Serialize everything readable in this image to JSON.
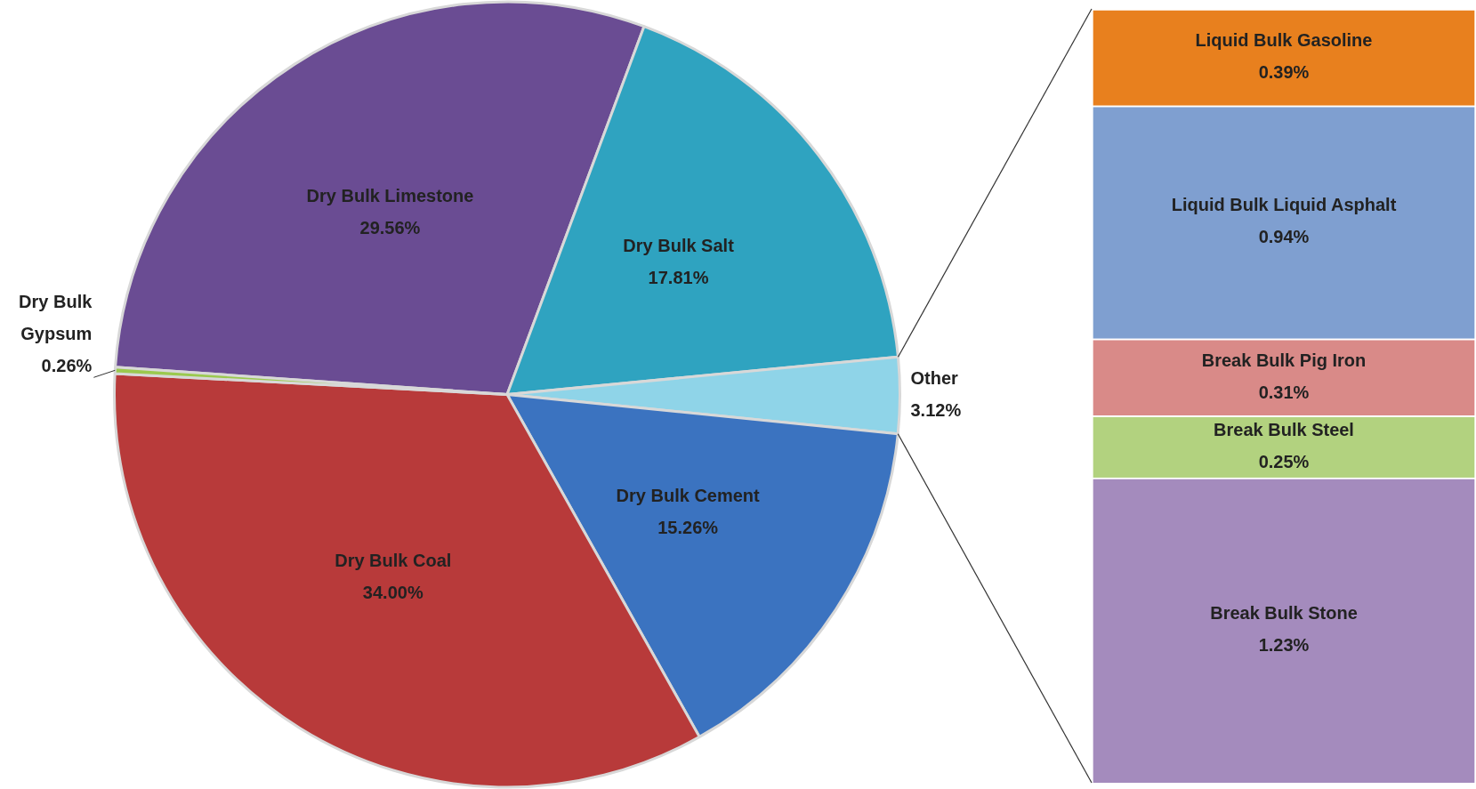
{
  "chart_data": [
    {
      "type": "pie",
      "categories": [
        "Dry Bulk Limestone",
        "Dry Bulk Salt",
        "Other",
        "Dry Bulk Cement",
        "Dry Bulk Coal",
        "Dry Bulk Gypsum"
      ],
      "values": [
        29.56,
        17.81,
        3.12,
        15.26,
        34.0,
        0.26
      ],
      "value_labels": [
        "29.56%",
        "17.81%",
        "3.12%",
        "15.26%",
        "34.00%",
        "0.26%"
      ],
      "colors": [
        "#6a4c93",
        "#2fa3c0",
        "#8fd4e8",
        "#3b73c0",
        "#b83a3a",
        "#9bc94f"
      ],
      "legend": false
    },
    {
      "type": "bar",
      "stacked": true,
      "categories": [
        null
      ],
      "legend": false,
      "series": [
        {
          "name": "Break Bulk Stone",
          "color": "#a48bbd",
          "values": [
            1.23
          ],
          "value_labels": [
            "1.23%"
          ]
        },
        {
          "name": "Break Bulk Steel",
          "color": "#b2d27f",
          "values": [
            0.25
          ],
          "value_labels": [
            "0.25%"
          ]
        },
        {
          "name": "Break Bulk Pig Iron",
          "color": "#d98a88",
          "values": [
            0.31
          ],
          "value_labels": [
            "0.31%"
          ]
        },
        {
          "name": "Liquid Bulk Liquid Asphalt",
          "color": "#7f9fd0",
          "values": [
            0.94
          ],
          "value_labels": [
            "0.94%"
          ]
        },
        {
          "name": "Liquid Bulk Gasoline",
          "color": "#e8801e",
          "values": [
            0.39
          ],
          "value_labels": [
            "0.39%"
          ]
        }
      ]
    }
  ]
}
